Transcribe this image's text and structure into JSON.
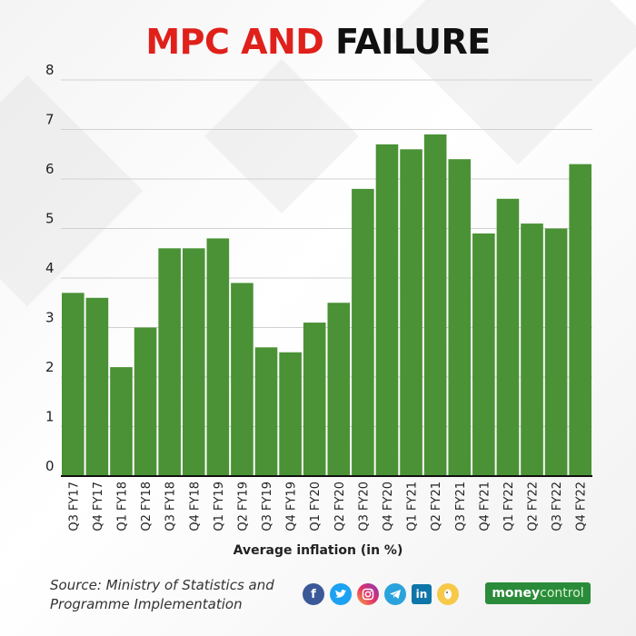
{
  "title": {
    "part1": "MPC AND",
    "part2": "FAILURE"
  },
  "colors": {
    "bar": "#4a9235",
    "title_red": "#e0201b",
    "grid": "#d0d0d0",
    "axis": "#111111",
    "brand": "#2a8c3a"
  },
  "chart_data": {
    "type": "bar",
    "title": "MPC AND FAILURE",
    "xlabel": "Average inflation (in %)",
    "ylabel": "",
    "ylim": [
      0,
      8
    ],
    "yticks": [
      0,
      1,
      2,
      3,
      4,
      5,
      6,
      7,
      8
    ],
    "grid": true,
    "categories": [
      "Q3 FY17",
      "Q4 FY17",
      "Q1 FY18",
      "Q2 FY18",
      "Q3 FY18",
      "Q4 FY18",
      "Q1 FY19",
      "Q2 FY19",
      "Q3 FY19",
      "Q4 FY19",
      "Q1 FY20",
      "Q2 FY20",
      "Q3 FY20",
      "Q4 FY20",
      "Q1 FY21",
      "Q2 FY21",
      "Q3 FY21",
      "Q4 FY21",
      "Q1 FY22",
      "Q2 FY22",
      "Q3 FY22",
      "Q4 FY22"
    ],
    "values": [
      3.7,
      3.6,
      2.2,
      3.0,
      4.6,
      4.6,
      4.8,
      3.9,
      2.6,
      2.5,
      3.1,
      3.5,
      5.8,
      6.7,
      6.6,
      6.9,
      6.4,
      4.9,
      5.6,
      5.1,
      5.0,
      6.3
    ]
  },
  "footer": {
    "source_line1": "Source: Ministry of  Statistics and",
    "source_line2": "Programme Implementation",
    "social_icons": [
      "facebook-icon",
      "twitter-icon",
      "instagram-icon",
      "telegram-icon",
      "linkedin-icon",
      "koo-icon"
    ],
    "brand_part1": "money",
    "brand_part2": "control"
  }
}
